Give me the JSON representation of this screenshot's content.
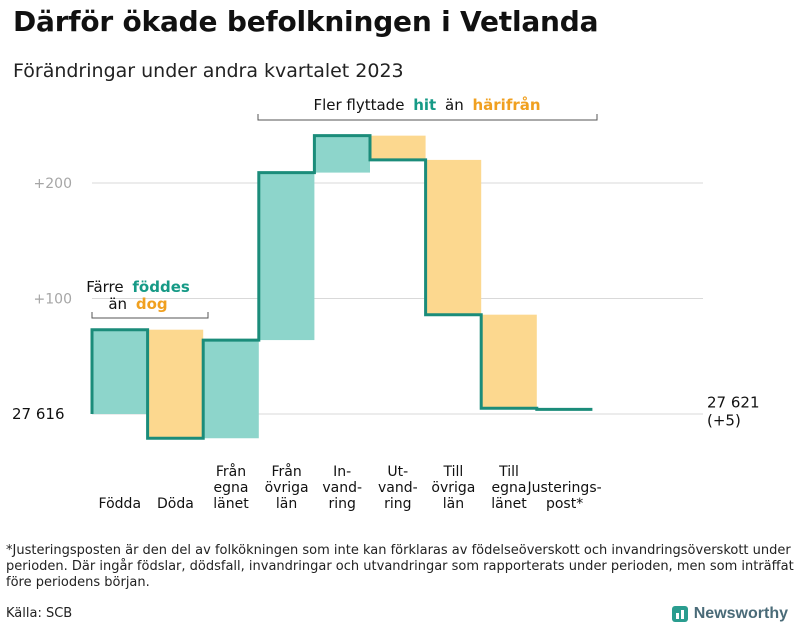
{
  "header": {
    "title": "Därför ökade befolkningen i Vetlanda",
    "subtitle": "Förändringar under andra kvartalet 2023"
  },
  "chart_data": {
    "type": "waterfall",
    "start_value": 27616,
    "start_label": "27  616",
    "end_value": 27621,
    "end_label_line1": "27 621",
    "end_label_line2": "(+5)",
    "ylim": [
      -25,
      250
    ],
    "yticks": [
      {
        "value": 200,
        "label": "+200"
      },
      {
        "value": 100,
        "label": "+100"
      },
      {
        "value": 0,
        "label": ""
      }
    ],
    "steps": [
      {
        "label_lines": [
          "Födda"
        ],
        "delta": 73,
        "kind": "gain"
      },
      {
        "label_lines": [
          "Döda"
        ],
        "delta": -94,
        "kind": "loss"
      },
      {
        "label_lines": [
          "Från",
          "egna",
          "länet"
        ],
        "delta": 85,
        "kind": "gain"
      },
      {
        "label_lines": [
          "Från",
          "övriga",
          "län"
        ],
        "delta": 145,
        "kind": "gain"
      },
      {
        "label_lines": [
          "In-",
          "vand-",
          "ring"
        ],
        "delta": 32,
        "kind": "gain"
      },
      {
        "label_lines": [
          "Ut-",
          "vand-",
          "ring"
        ],
        "delta": -21,
        "kind": "loss"
      },
      {
        "label_lines": [
          "Till",
          "övriga",
          "län"
        ],
        "delta": -134,
        "kind": "loss"
      },
      {
        "label_lines": [
          "Till",
          "egna",
          "länet"
        ],
        "delta": -81,
        "kind": "loss"
      },
      {
        "label_lines": [
          "Justerings-",
          "post*"
        ],
        "delta": -1,
        "kind": "adjust"
      }
    ],
    "annotations": {
      "births_deaths": {
        "line1": "Färre",
        "word_gain": "föddes",
        "line2_prefix": "än",
        "word_loss": "dog"
      },
      "migration": {
        "prefix": "Fler flyttade",
        "word_gain": "hit",
        "middle": "än",
        "word_loss": "härifrån"
      }
    },
    "colors": {
      "gain_fill": "#8dd5cb",
      "loss_fill": "#fcd88f",
      "step_line": "#1b8c7a",
      "gain_text": "#169a86",
      "loss_text": "#f0a020",
      "grid": "#d9d9d9",
      "tick_text": "#a6a6a6"
    }
  },
  "footer": {
    "footnote": "*Justeringsposten är den del av folkökningen som inte kan förklaras av födelseöverskott och invandringsöverskott under perioden. Där ingår födslar, dödsfall, invandringar och utvandringar som rapporterats under perioden, men som inträffat före periodens början.",
    "source": "Källa: SCB",
    "brand": "Newsworthy"
  }
}
